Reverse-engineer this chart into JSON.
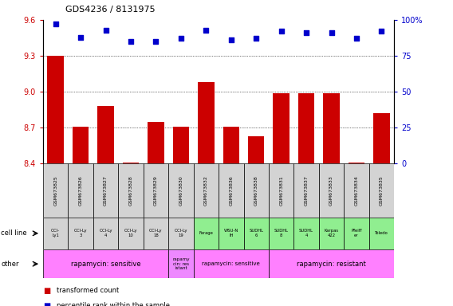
{
  "title": "GDS4236 / 8131975",
  "samples": [
    "GSM673825",
    "GSM673826",
    "GSM673827",
    "GSM673828",
    "GSM673829",
    "GSM673830",
    "GSM673832",
    "GSM673836",
    "GSM673838",
    "GSM673831",
    "GSM673837",
    "GSM673833",
    "GSM673834",
    "GSM673835"
  ],
  "bar_values": [
    9.3,
    8.71,
    8.88,
    8.41,
    8.75,
    8.71,
    9.08,
    8.71,
    8.63,
    8.99,
    8.99,
    8.99,
    8.41,
    8.82
  ],
  "scatter_values": [
    97,
    88,
    93,
    85,
    85,
    87,
    93,
    86,
    87,
    92,
    91,
    91,
    87,
    92
  ],
  "cell_lines": [
    "OCI-\nLy1",
    "OCI-Ly\n3",
    "OCI-Ly\n4",
    "OCI-Ly\n10",
    "OCI-Ly\n18",
    "OCI-Ly\n19",
    "Farage",
    "WSU-N\nIH",
    "SUDHL\n6",
    "SUDHL\n8",
    "SUDHL\n4",
    "Karpas\n422",
    "Pfeiff\ner",
    "Toledo"
  ],
  "cell_line_colors": [
    "#d3d3d3",
    "#d3d3d3",
    "#d3d3d3",
    "#d3d3d3",
    "#d3d3d3",
    "#d3d3d3",
    "#90ee90",
    "#90ee90",
    "#90ee90",
    "#90ee90",
    "#90ee90",
    "#90ee90",
    "#90ee90",
    "#90ee90"
  ],
  "ylim": [
    8.4,
    9.6
  ],
  "y2lim": [
    0,
    100
  ],
  "yticks": [
    8.4,
    8.7,
    9.0,
    9.3,
    9.6
  ],
  "y2ticks": [
    0,
    25,
    50,
    75,
    100
  ],
  "hlines": [
    8.7,
    9.0,
    9.3
  ],
  "bar_color": "#cc0000",
  "scatter_color": "#0000cc",
  "scatter_size": 18,
  "other_groups": [
    {
      "label": "rapamycin: sensitive",
      "start": 0,
      "end": 5,
      "color": "#ff80ff"
    },
    {
      "label": "rapamy\ncin: res\nistant",
      "start": 5,
      "end": 6,
      "color": "#ee88ff"
    },
    {
      "label": "rapamycin: sensitive",
      "start": 6,
      "end": 9,
      "color": "#ff80ff"
    },
    {
      "label": "rapamycin: resistant",
      "start": 9,
      "end": 14,
      "color": "#ff80ff"
    }
  ]
}
